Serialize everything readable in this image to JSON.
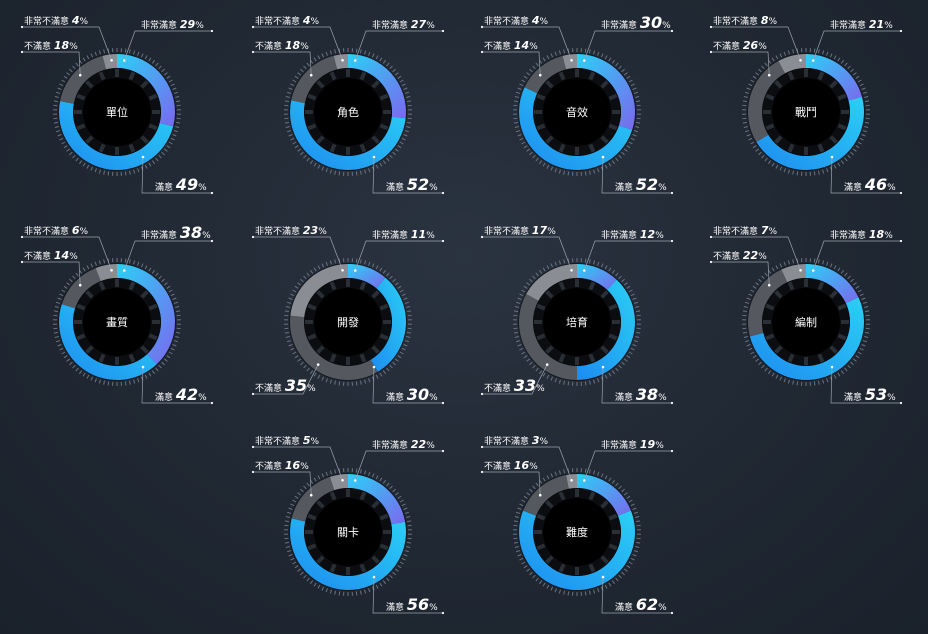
{
  "chart_data": {
    "type": "pie",
    "categories": [
      "非常不滿意",
      "不滿意",
      "滿意",
      "非常滿意"
    ],
    "colors": {
      "非常不滿意": "#8a8e94",
      "不滿意": "#55595f",
      "滿意": "#1d8bf0",
      "非常滿意": "#7b68ee",
      "滿意_light": "#2bd0f5"
    },
    "charts": [
      {
        "title": "單位",
        "values": {
          "非常不滿意": 4,
          "不滿意": 18,
          "滿意": 49,
          "非常滿意": 29
        }
      },
      {
        "title": "角色",
        "values": {
          "非常不滿意": 4,
          "不滿意": 18,
          "滿意": 52,
          "非常滿意": 27
        }
      },
      {
        "title": "音效",
        "values": {
          "非常不滿意": 4,
          "不滿意": 14,
          "滿意": 52,
          "非常滿意": 30
        }
      },
      {
        "title": "戰鬥",
        "values": {
          "非常不滿意": 8,
          "不滿意": 26,
          "滿意": 46,
          "非常滿意": 21
        }
      },
      {
        "title": "畫質",
        "values": {
          "非常不滿意": 6,
          "不滿意": 14,
          "滿意": 42,
          "非常滿意": 38
        }
      },
      {
        "title": "開發",
        "values": {
          "非常不滿意": 23,
          "不滿意": 35,
          "滿意": 30,
          "非常滿意": 11
        }
      },
      {
        "title": "培育",
        "values": {
          "非常不滿意": 17,
          "不滿意": 33,
          "滿意": 38,
          "非常滿意": 12
        }
      },
      {
        "title": "編制",
        "values": {
          "非常不滿意": 7,
          "不滿意": 22,
          "滿意": 53,
          "非常滿意": 18
        }
      },
      {
        "title": "關卡",
        "values": {
          "非常不滿意": 5,
          "不滿意": 16,
          "滿意": 56,
          "非常滿意": 22
        }
      },
      {
        "title": "難度",
        "values": {
          "非常不滿意": 3,
          "不滿意": 16,
          "滿意": 62,
          "非常滿意": 19
        }
      }
    ]
  }
}
